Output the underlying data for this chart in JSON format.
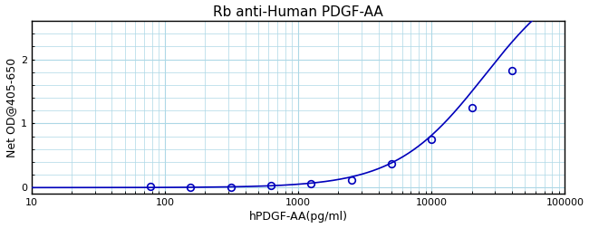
{
  "title": "Rb anti-Human PDGF-AA",
  "xlabel": "hPDGF-AA(pg/ml)",
  "ylabel": "Net OD@405-650",
  "x_data": [
    78,
    156,
    313,
    625,
    1250,
    2500,
    5000,
    10000,
    20000,
    40000
  ],
  "y_data": [
    0.02,
    0.01,
    0.01,
    0.03,
    0.06,
    0.12,
    0.37,
    0.75,
    1.25,
    1.82
  ],
  "xlim": [
    10,
    100000
  ],
  "ylim": [
    -0.1,
    2.6
  ],
  "yticks": [
    0,
    1,
    2
  ],
  "curve_color": "#0000bb",
  "marker_color": "#0000bb",
  "grid_color": "#add8e6",
  "background_color": "#ffffff",
  "title_fontsize": 11,
  "label_fontsize": 9,
  "4pl_a": 0.0,
  "4pl_d": 3.5,
  "4pl_c": 25000,
  "4pl_b": 1.3
}
